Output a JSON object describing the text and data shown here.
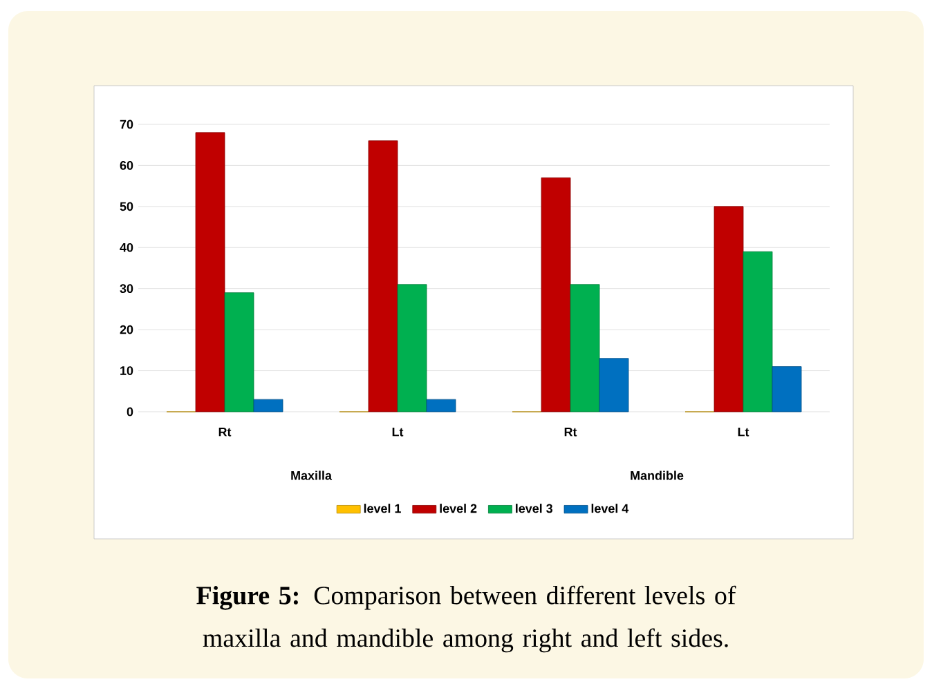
{
  "chart_data": {
    "type": "bar",
    "title": "**Figure 5:** Comparison between different levels of maxilla and mandible among right and left sides.",
    "categories": [
      "Rt",
      "Lt",
      "Rt",
      "Lt"
    ],
    "annotations": [
      "Maxilla",
      "Mandible"
    ],
    "series": [
      {
        "name": "level 1",
        "color": "#ffc000",
        "values": [
          0,
          0,
          0,
          0
        ]
      },
      {
        "name": "level 2",
        "color": "#c00000",
        "values": [
          68,
          66,
          57,
          50
        ]
      },
      {
        "name": "level 3",
        "color": "#00b050",
        "values": [
          29,
          31,
          31,
          39
        ]
      },
      {
        "name": "level 4",
        "color": "#0070c0",
        "values": [
          3,
          3,
          13,
          11
        ]
      }
    ],
    "ylim": [
      0,
      70
    ],
    "yticks": [
      0,
      10,
      20,
      30,
      40,
      50,
      60,
      70
    ],
    "grid": "y",
    "legend": "bottom"
  }
}
